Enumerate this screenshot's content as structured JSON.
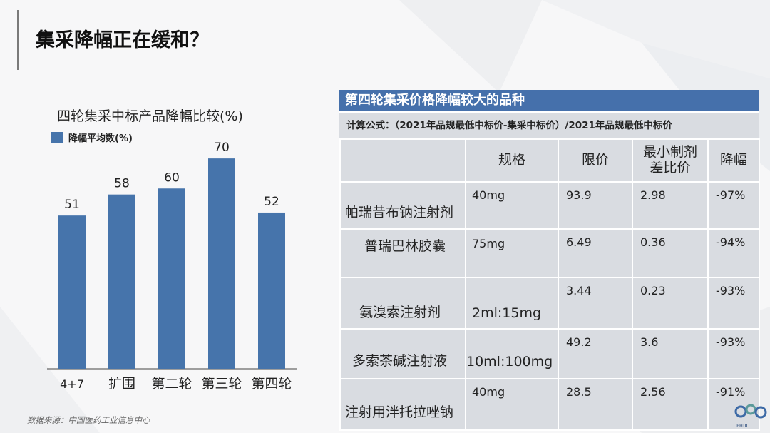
{
  "slide": {
    "title": "集采降幅正在缓和？",
    "source": "数据来源：中国医药工业信息中心",
    "logo_text": "PHIIC"
  },
  "chart_data": {
    "type": "bar",
    "title": "四轮集采中标产品降幅比较(%)",
    "categories": [
      "4+7",
      "扩围",
      "第二轮",
      "第三轮",
      "第四轮"
    ],
    "series": [
      {
        "name": "降幅平均数(%)",
        "values": [
          51,
          58,
          60,
          70,
          52
        ]
      }
    ],
    "ylim": [
      0,
      80
    ],
    "grid": false,
    "legend": "top-left",
    "color": "#4674ab"
  },
  "table": {
    "title": "第四轮集采价格降幅较大的品种",
    "formula": "计算公式：（2021年品规最低中标价-集采中标价）/2021年品规最低中标价",
    "headers": [
      "",
      "规格",
      "限价",
      "最小制剂差比价",
      "降幅"
    ],
    "rows": [
      {
        "name": "帕瑞昔布钠注射剂",
        "spec": "40mg",
        "price_limit": "93.9",
        "ratio": "2.98",
        "drop": "-97%"
      },
      {
        "name": "普瑞巴林胶囊",
        "spec": "75mg",
        "price_limit": "6.49",
        "ratio": "0.36",
        "drop": "-94%"
      },
      {
        "name": "氨溴索注射剂",
        "spec": "2ml:15mg",
        "price_limit": "3.44",
        "ratio": "0.23",
        "drop": "-93%"
      },
      {
        "name": "多索茶碱注射液",
        "spec": "10ml:100mg",
        "price_limit": "49.2",
        "ratio": "3.6",
        "drop": "-93%"
      },
      {
        "name": "注射用泮托拉唑钠",
        "spec": "40mg",
        "price_limit": "28.5",
        "ratio": "2.56",
        "drop": "-91%"
      }
    ]
  }
}
